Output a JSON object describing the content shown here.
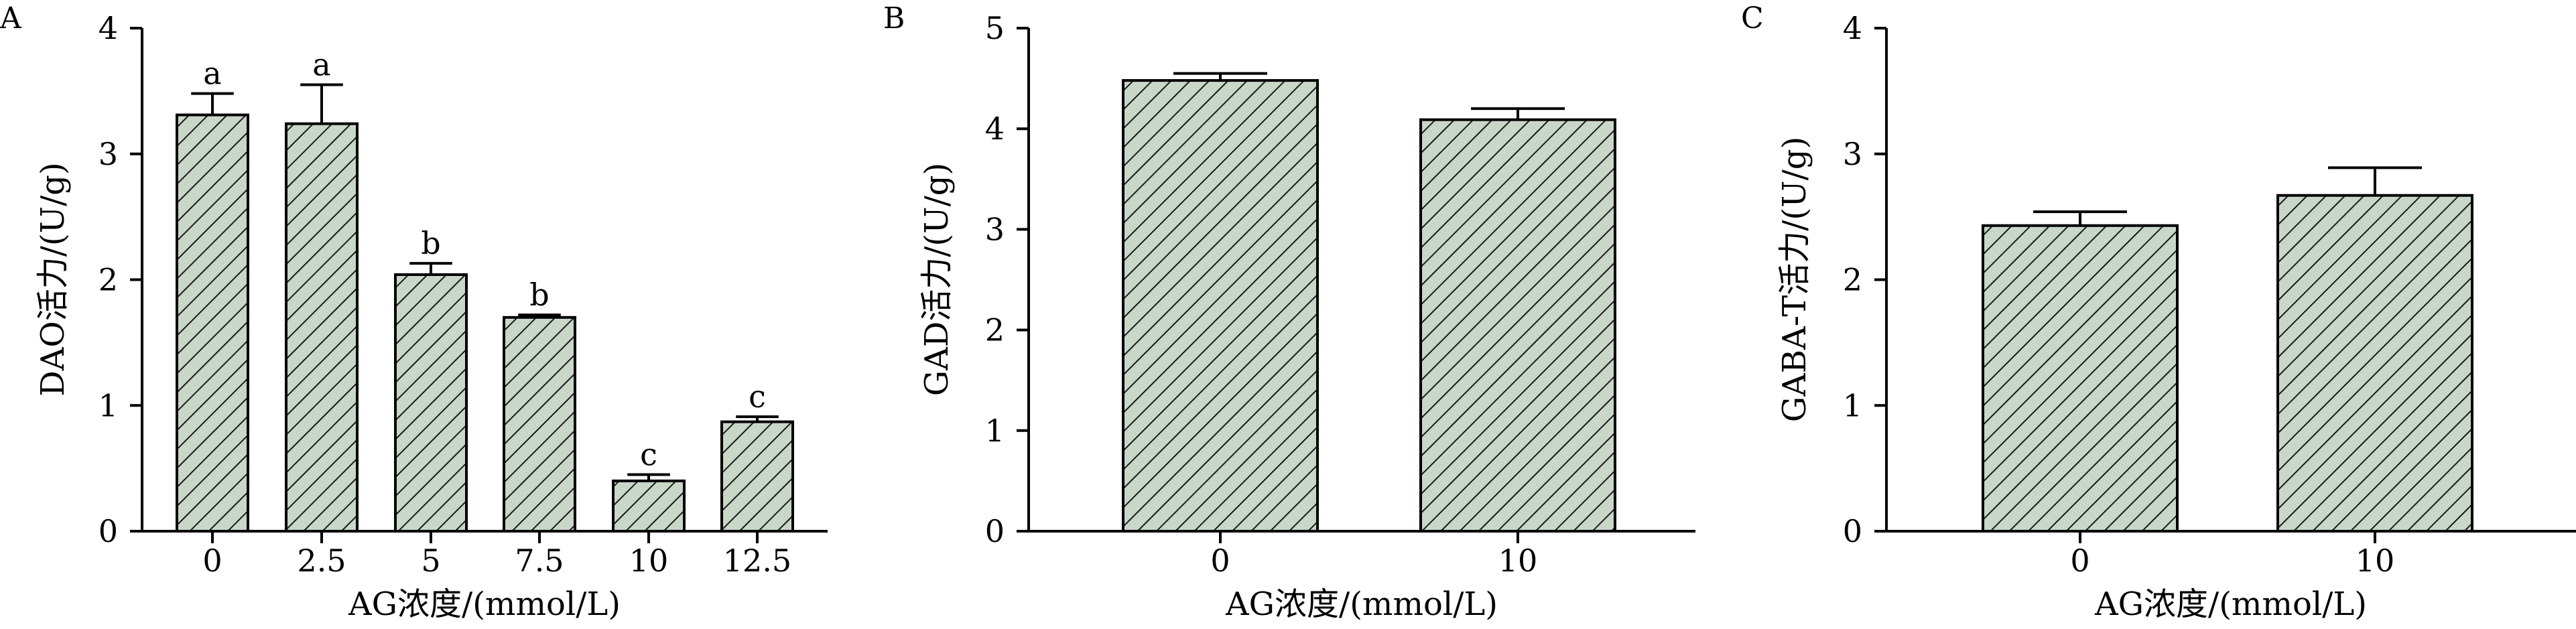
{
  "chart_data": [
    {
      "panel": "A",
      "type": "bar",
      "categories": [
        "0",
        "2.5",
        "5",
        "7.5",
        "10",
        "12.5"
      ],
      "values": [
        3.31,
        3.24,
        2.04,
        1.7,
        0.4,
        0.87
      ],
      "errors": [
        0.17,
        0.31,
        0.09,
        0.02,
        0.05,
        0.04
      ],
      "significance": [
        "a",
        "a",
        "b",
        "b",
        "c",
        "c"
      ],
      "xlabel": "AG浓度/(mmol/L)",
      "ylabel": "DAO活力/(U/g)",
      "ylim": [
        0,
        4
      ],
      "yticks": [
        "0",
        "1",
        "2",
        "3",
        "4"
      ],
      "grid": false
    },
    {
      "panel": "B",
      "type": "bar",
      "categories": [
        "0",
        "10"
      ],
      "values": [
        4.48,
        4.09
      ],
      "errors": [
        0.07,
        0.11
      ],
      "xlabel": "AG浓度/(mmol/L)",
      "ylabel": "GAD活力/(U/g)",
      "ylim": [
        0,
        5
      ],
      "yticks": [
        "0",
        "1",
        "2",
        "3",
        "4",
        "5"
      ],
      "grid": false
    },
    {
      "panel": "C",
      "type": "bar",
      "categories": [
        "0",
        "10"
      ],
      "values": [
        2.43,
        2.67
      ],
      "errors": [
        0.11,
        0.22
      ],
      "xlabel": "AG浓度/(mmol/L)",
      "ylabel": "GABA-T活力/(U/g)",
      "ylim": [
        0,
        4
      ],
      "yticks": [
        "0",
        "1",
        "2",
        "3",
        "4"
      ],
      "grid": false
    }
  ],
  "colors": {
    "bar_fill": "#c8d7c8",
    "hatch": "#1a1a1a",
    "axis": "#000000"
  }
}
